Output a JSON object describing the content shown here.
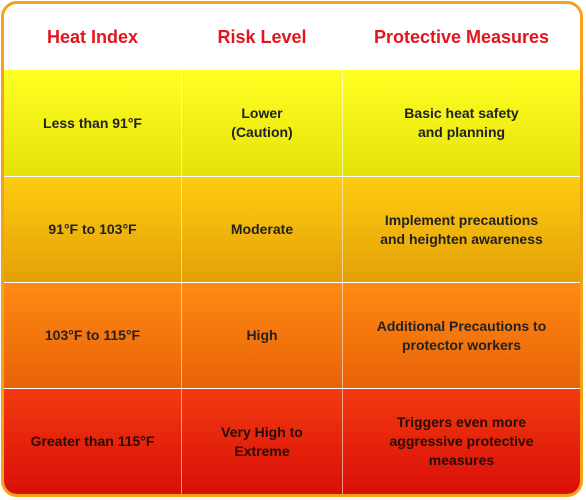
{
  "table": {
    "headers": [
      "Heat Index",
      "Risk Level",
      "Protective Measures"
    ],
    "rows": [
      {
        "heat_index": "Less than 91°F",
        "risk_level": [
          "Lower",
          "(Caution)"
        ],
        "measures": [
          "Basic heat safety",
          "and planning"
        ]
      },
      {
        "heat_index": "91°F to 103°F",
        "risk_level": [
          "Moderate"
        ],
        "measures": [
          "Implement precautions",
          "and heighten awareness"
        ]
      },
      {
        "heat_index": "103°F to 115°F",
        "risk_level": [
          "High"
        ],
        "measures": [
          "Additional Precautions to",
          "protector workers"
        ]
      },
      {
        "heat_index": "Greater than 115°F",
        "risk_level": [
          "Very High to",
          "Extreme"
        ],
        "measures": [
          "Triggers even more",
          "aggressive protective",
          "measures"
        ]
      }
    ]
  },
  "colors": {
    "border": "#f5a21a",
    "header_text": "#e3141b",
    "row_caution": "#ffff22",
    "row_moderate": "#ffcc10",
    "row_high": "#ff8a12",
    "row_extreme": "#f23a10"
  }
}
